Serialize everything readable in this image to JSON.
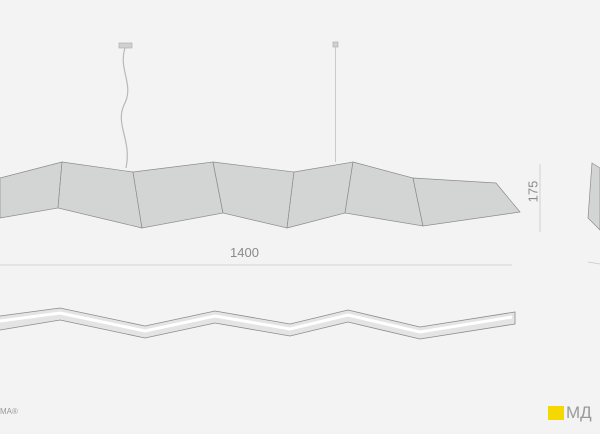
{
  "dimensions": {
    "length": "1400",
    "height": "175"
  },
  "branding": {
    "left_text": "MA®",
    "logo_text": "МД",
    "logo_color": "#f5d800"
  },
  "colors": {
    "panel_fill": "#d3d4d4",
    "line": "#8c8c8c",
    "background": "#f2f3f2"
  }
}
